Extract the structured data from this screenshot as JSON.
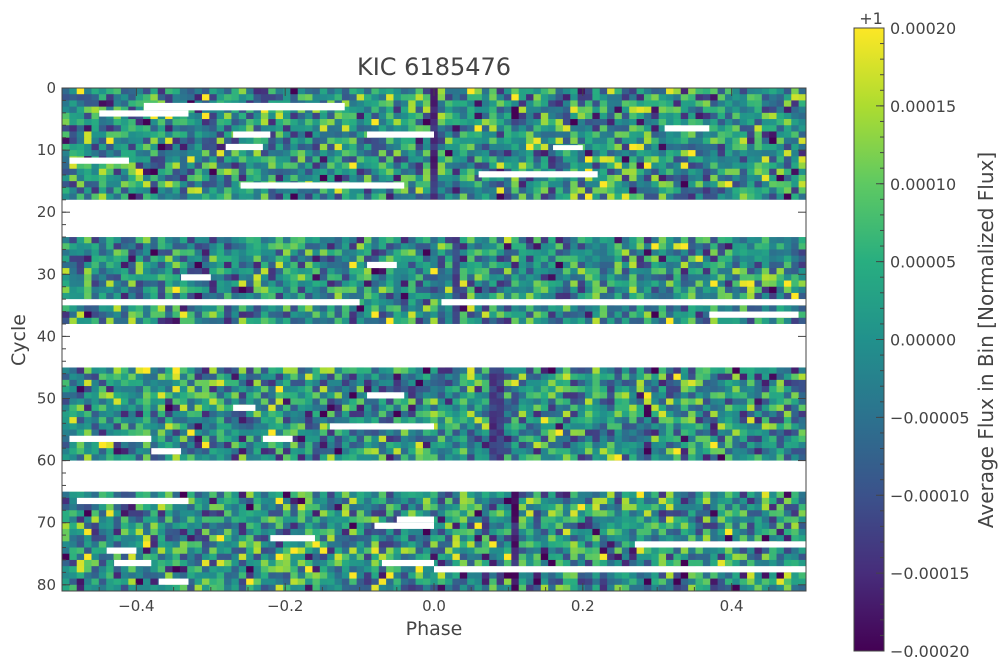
{
  "chart_data": {
    "type": "heatmap",
    "title": "KIC 6185476",
    "xlabel": "Phase",
    "ylabel": "Cycle",
    "xlim": [
      -0.5,
      0.5
    ],
    "ylim": [
      81,
      0
    ],
    "x_ticks": [
      -0.4,
      -0.2,
      0.0,
      0.2,
      0.4
    ],
    "x_tick_labels": [
      "−0.4",
      "−0.2",
      "0.0",
      "0.2",
      "0.4"
    ],
    "y_ticks": [
      0,
      10,
      20,
      30,
      40,
      50,
      60,
      70,
      80
    ],
    "y_tick_labels": [
      "0",
      "10",
      "20",
      "30",
      "40",
      "50",
      "60",
      "70",
      "80"
    ],
    "grid": false,
    "n_phase_bins": 101,
    "n_cycles": 81,
    "colormap": "viridis",
    "colorbar": {
      "label": "Average Flux in Bin [Normalized Flux]",
      "offset_label": "+1",
      "vmin": -0.0002,
      "vmax": 0.0002,
      "ticks": [
        0.0002,
        0.00015,
        0.0001,
        5e-05,
        0.0,
        -5e-05,
        -0.0001,
        -0.00015,
        -0.0002
      ],
      "tick_labels": [
        "0.00020",
        "0.00015",
        "0.00010",
        "0.00005",
        "0.00000",
        "−0.00005",
        "−0.00010",
        "−0.00015",
        "−0.00020"
      ]
    },
    "gaps": [
      {
        "cycles": [
          18,
          24
        ],
        "phase": [
          -0.5,
          0.5
        ]
      },
      {
        "cycles": [
          38,
          45
        ],
        "phase": [
          -0.5,
          0.5
        ]
      },
      {
        "cycles": [
          60,
          65
        ],
        "phase": [
          -0.5,
          0.5
        ]
      },
      {
        "cycles": [
          2.4,
          3.6
        ],
        "phase": [
          -0.39,
          -0.12
        ]
      },
      {
        "cycles": [
          3.6,
          4.6
        ],
        "phase": [
          -0.45,
          -0.33
        ]
      },
      {
        "cycles": [
          7.0,
          8.0
        ],
        "phase": [
          -0.27,
          -0.22
        ]
      },
      {
        "cycles": [
          7.0,
          8.0
        ],
        "phase": [
          -0.09,
          0.0
        ]
      },
      {
        "cycles": [
          9.0,
          10.0
        ],
        "phase": [
          -0.28,
          -0.23
        ]
      },
      {
        "cycles": [
          11.2,
          12.2
        ],
        "phase": [
          -0.49,
          -0.41
        ]
      },
      {
        "cycles": [
          13.4,
          14.4
        ],
        "phase": [
          0.06,
          0.22
        ]
      },
      {
        "cycles": [
          15.2,
          16.2
        ],
        "phase": [
          -0.26,
          -0.04
        ]
      },
      {
        "cycles": [
          9.2,
          10.0
        ],
        "phase": [
          0.16,
          0.2
        ]
      },
      {
        "cycles": [
          6.0,
          7.0
        ],
        "phase": [
          0.31,
          0.37
        ]
      },
      {
        "cycles": [
          28.0,
          29.0
        ],
        "phase": [
          -0.09,
          -0.05
        ]
      },
      {
        "cycles": [
          30.0,
          31.0
        ],
        "phase": [
          -0.34,
          -0.3
        ]
      },
      {
        "cycles": [
          34.0,
          35.0
        ],
        "phase": [
          -0.5,
          -0.1
        ]
      },
      {
        "cycles": [
          34.0,
          35.0
        ],
        "phase": [
          0.01,
          0.5
        ]
      },
      {
        "cycles": [
          36.0,
          37.0
        ],
        "phase": [
          0.37,
          0.49
        ]
      },
      {
        "cycles": [
          44.0,
          45.0
        ],
        "phase": [
          -0.5,
          -0.38
        ]
      },
      {
        "cycles": [
          49.0,
          50.0
        ],
        "phase": [
          -0.09,
          -0.04
        ]
      },
      {
        "cycles": [
          51.0,
          52.0
        ],
        "phase": [
          -0.27,
          -0.24
        ]
      },
      {
        "cycles": [
          54.0,
          55.0
        ],
        "phase": [
          -0.14,
          0.0
        ]
      },
      {
        "cycles": [
          56.0,
          57.0
        ],
        "phase": [
          -0.49,
          -0.38
        ]
      },
      {
        "cycles": [
          56.0,
          57.0
        ],
        "phase": [
          -0.23,
          -0.19
        ]
      },
      {
        "cycles": [
          58.0,
          59.0
        ],
        "phase": [
          -0.38,
          -0.34
        ]
      },
      {
        "cycles": [
          60.0,
          61.0
        ],
        "phase": [
          0.0,
          0.23
        ]
      },
      {
        "cycles": [
          66.0,
          67.0
        ],
        "phase": [
          -0.48,
          -0.33
        ]
      },
      {
        "cycles": [
          69.0,
          70.0
        ],
        "phase": [
          -0.05,
          0.0
        ]
      },
      {
        "cycles": [
          70.0,
          71.0
        ],
        "phase": [
          -0.08,
          0.0
        ]
      },
      {
        "cycles": [
          72.0,
          73.0
        ],
        "phase": [
          -0.22,
          -0.16
        ]
      },
      {
        "cycles": [
          73.0,
          74.0
        ],
        "phase": [
          0.27,
          0.5
        ]
      },
      {
        "cycles": [
          74.0,
          75.0
        ],
        "phase": [
          -0.44,
          -0.4
        ]
      },
      {
        "cycles": [
          76.0,
          77.0
        ],
        "phase": [
          -0.43,
          -0.38
        ]
      },
      {
        "cycles": [
          76.0,
          77.0
        ],
        "phase": [
          -0.07,
          0.0
        ]
      },
      {
        "cycles": [
          77.0,
          78.0
        ],
        "phase": [
          0.0,
          0.5
        ]
      },
      {
        "cycles": [
          79.0,
          80.0
        ],
        "phase": [
          -0.37,
          -0.33
        ]
      }
    ],
    "dips": [
      {
        "cycles": [
          0,
          18
        ],
        "phase": -0.003,
        "depth": -0.00018
      },
      {
        "cycles": [
          24,
          38
        ],
        "phase": 0.03,
        "depth": -0.00015
      },
      {
        "cycles": [
          45,
          60
        ],
        "phase": 0.085,
        "depth": -0.00017
      },
      {
        "cycles": [
          65,
          81
        ],
        "phase": 0.11,
        "depth": -0.0002
      }
    ]
  }
}
